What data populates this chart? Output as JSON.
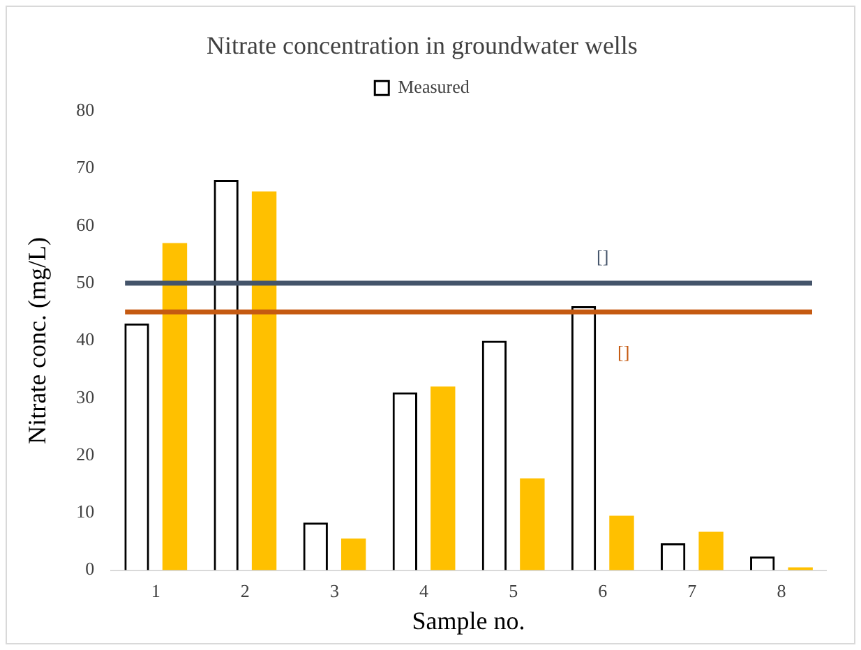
{
  "chart_data": {
    "type": "bar",
    "title": "Nitrate concentration in groundwater wells",
    "xlabel": "Sample no.",
    "ylabel": "Nitrate conc. (mg/L)",
    "categories": [
      "1",
      "2",
      "3",
      "4",
      "5",
      "6",
      "7",
      "8"
    ],
    "series": [
      {
        "name": "Measured",
        "color": "#000000",
        "values": [
          43,
          68,
          8.3,
          31,
          40,
          46,
          4.7,
          2.4
        ]
      },
      {
        "color": "#ffc000",
        "values": [
          57,
          66,
          5.5,
          32,
          16,
          9.5,
          6.7,
          0.5
        ]
      }
    ],
    "ylim": [
      0,
      80
    ],
    "yticks": [
      0,
      10,
      20,
      30,
      40,
      50,
      60,
      70,
      80
    ],
    "grid": false,
    "legend": "top",
    "ref_lines": [
      {
        "axis": "y",
        "value": 50,
        "label": "[]",
        "color": "#44546a"
      },
      {
        "axis": "y",
        "value": 45,
        "label": "[]",
        "color": "#c55a11"
      }
    ]
  }
}
